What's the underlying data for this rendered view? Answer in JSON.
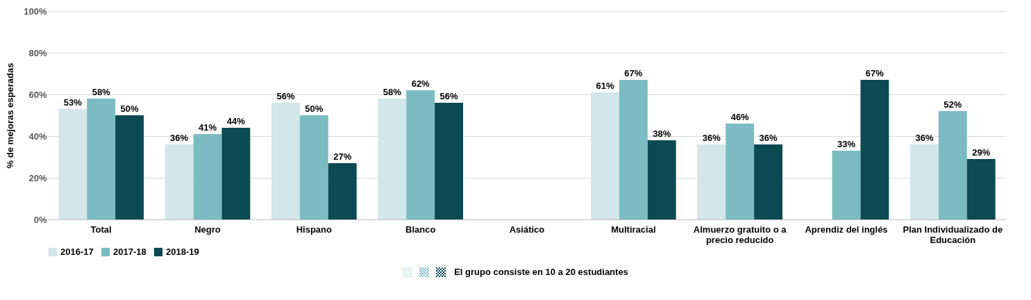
{
  "chart_data": {
    "type": "bar",
    "ylabel": "% de mejoras esperadas",
    "categories": [
      "Total",
      "Negro",
      "Hispano",
      "Blanco",
      "Asiático",
      "Multiracial",
      "Almuerzo gratuito o a precio reducido",
      "Aprendiz del inglés",
      "Plan Individualizado de Educación"
    ],
    "series": [
      {
        "name": "2016-17",
        "color": "#d3e6e9",
        "values": [
          53,
          36,
          56,
          58,
          null,
          61,
          36,
          null,
          36
        ],
        "value_labels": [
          "53%",
          "36%",
          "56%",
          "58%",
          null,
          "61%",
          "36%",
          null,
          "36%"
        ]
      },
      {
        "name": "2017-18",
        "color": "#7bbcc2",
        "values": [
          58,
          41,
          50,
          62,
          null,
          67,
          46,
          33,
          52
        ],
        "value_labels": [
          "58%",
          "41%",
          "50%",
          "62%",
          null,
          "67%",
          "46%",
          "33%",
          "52%"
        ]
      },
      {
        "name": "2018-19",
        "color": "#0b4a52",
        "values": [
          50,
          44,
          27,
          56,
          null,
          38,
          36,
          67,
          29
        ],
        "value_labels": [
          "50%",
          "44%",
          "27%",
          "56%",
          null,
          "38%",
          "36%",
          "67%",
          "29%"
        ]
      }
    ],
    "ylim": [
      0,
      100
    ],
    "yticks": [
      {
        "value": 0,
        "label": "0%"
      },
      {
        "value": 20,
        "label": "20%"
      },
      {
        "value": 40,
        "label": "40%"
      },
      {
        "value": 60,
        "label": "60%"
      },
      {
        "value": 80,
        "label": "80%"
      },
      {
        "value": 100,
        "label": "100%"
      }
    ],
    "grid": "y",
    "legend": "bottom",
    "annotations": [
      "El grupo consiste en 10 a 20 estudiantes"
    ]
  }
}
